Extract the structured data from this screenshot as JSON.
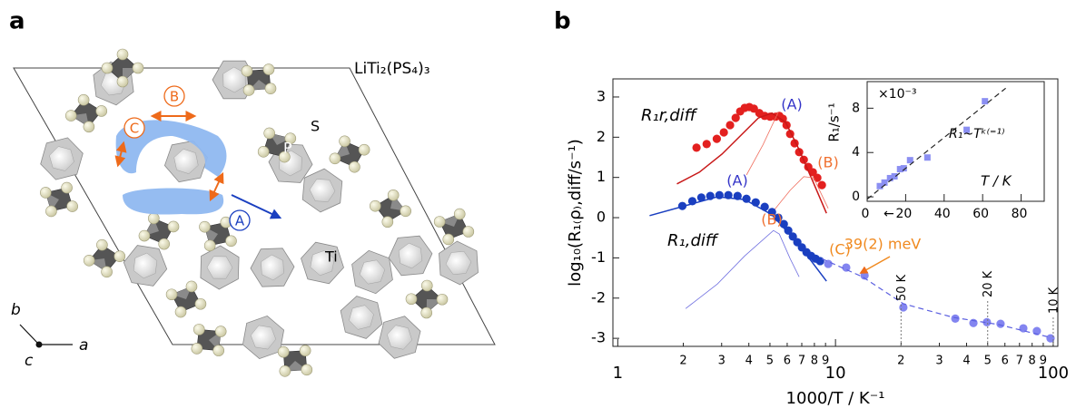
{
  "panel_a": {
    "label": "a",
    "compound": "LiTi₂(PS₄)₃",
    "atoms": [
      "S",
      "P",
      "Ti"
    ],
    "paths": [
      "A",
      "B",
      "C"
    ],
    "axes": [
      "a",
      "b",
      "c"
    ]
  },
  "panel_b": {
    "label": "b"
  },
  "chart_data": [
    {
      "type": "scatter",
      "xscale": "log",
      "x_label": "1000/T / K⁻¹",
      "y_label": "log₁₀(R₁₍ρ₎,diff/s⁻¹)",
      "xlim": [
        0.95,
        105
      ],
      "ylim": [
        -3.2,
        3.45
      ],
      "xticks": [
        1,
        2,
        3,
        4,
        5,
        6,
        7,
        8,
        9,
        10,
        {
          "value": 20,
          "label": "2"
        },
        {
          "value": 30,
          "label": "3"
        },
        {
          "value": 40,
          "label": "4"
        },
        {
          "value": 50,
          "label": "5"
        },
        {
          "value": 60,
          "label": "6"
        },
        {
          "value": 70,
          "label": "7"
        },
        {
          "value": 80,
          "label": "8"
        },
        {
          "value": 90,
          "label": "9"
        },
        100
      ],
      "yticks": [
        -3,
        -2,
        -1,
        0,
        1,
        2,
        3
      ],
      "series": [
        {
          "name": "R₁r,diff",
          "color": "#e3201f",
          "marker": "circle",
          "x": [
            2.3,
            2.56,
            2.85,
            3.07,
            3.28,
            3.48,
            3.65,
            3.83,
            4.02,
            4.22,
            4.47,
            4.73,
            5.01,
            5.31,
            5.52,
            5.73,
            5.96,
            6.19,
            6.49,
            6.81,
            7.15,
            7.5,
            7.87,
            8.25,
            8.66
          ],
          "values": [
            1.74,
            1.83,
            1.96,
            2.12,
            2.3,
            2.48,
            2.64,
            2.73,
            2.75,
            2.71,
            2.6,
            2.53,
            2.51,
            2.51,
            2.53,
            2.46,
            2.3,
            2.08,
            1.85,
            1.63,
            1.44,
            1.26,
            1.13,
            0.99,
            0.81
          ]
        },
        {
          "color": "#c81818",
          "line": true,
          "width": 1.5,
          "x": [
            1.87,
            2.37,
            3.01,
            3.65,
            4.43,
            5.11,
            5.9,
            6.81,
            7.87,
            9.09
          ],
          "values": [
            0.84,
            1.13,
            1.58,
            2.03,
            2.48,
            2.6,
            2.37,
            1.69,
            0.9,
            0.11
          ]
        },
        {
          "color": "#f07060",
          "line": true,
          "width": 0.8,
          "x": [
            3.9,
            4.64,
            5.46
          ],
          "values": [
            1.06,
            1.81,
            2.62
          ]
        },
        {
          "color": "#f07060",
          "line": true,
          "width": 0.8,
          "x": [
            5.21,
            6.19,
            7.15,
            7.94,
            8.66,
            9.26
          ],
          "values": [
            0.18,
            0.68,
            1.02,
            0.99,
            0.56,
            0.23
          ]
        },
        {
          "name": "R₁,diff",
          "color": "#1a3fc0",
          "marker": "circle",
          "x": [
            1.98,
            2.2,
            2.42,
            2.66,
            2.93,
            3.22,
            3.55,
            3.9,
            4.3,
            4.73,
            5.11,
            5.46,
            5.79,
            6.07,
            6.37,
            6.68,
            7.01,
            7.36,
            7.72,
            8.1,
            8.5
          ],
          "values": [
            0.29,
            0.41,
            0.5,
            0.54,
            0.56,
            0.56,
            0.54,
            0.47,
            0.38,
            0.27,
            0.14,
            0,
            -0.16,
            -0.32,
            -0.47,
            -0.61,
            -0.74,
            -0.86,
            -0.95,
            -1.02,
            -1.08
          ]
        },
        {
          "color": "#1a3fc0",
          "line": true,
          "width": 1.5,
          "x": [
            1.4,
            1.96,
            2.87,
            3.83,
            5.11,
            6.81,
            9.09
          ],
          "values": [
            0.05,
            0.27,
            0.52,
            0.45,
            0.07,
            -0.68,
            -1.58
          ]
        },
        {
          "color": "#7070e0",
          "line": true,
          "width": 0.8,
          "x": [
            2.05,
            2.87,
            3.83,
            5.19,
            5.52,
            6.19,
            6.81
          ],
          "values": [
            -2.26,
            -1.65,
            -0.95,
            -0.32,
            -0.41,
            -1.02,
            -1.47
          ]
        },
        {
          "color": "#8385f0",
          "marker": "circle",
          "x": [
            9.26,
            11.2,
            13.6,
            20.5,
            35.5,
            43.0,
            49.6,
            57.3,
            72.9,
            84.1,
            97.2
          ],
          "values": [
            -1.15,
            -1.24,
            -1.44,
            -2.23,
            -2.51,
            -2.62,
            -2.6,
            -2.64,
            -2.75,
            -2.82,
            -3.0
          ]
        },
        {
          "color": "#5b5fe0",
          "line": true,
          "dash": true,
          "width": 1.2,
          "x": [
            8.66,
            13.3,
            20.5,
            34.8,
            56.2,
            97.2
          ],
          "values": [
            -1.02,
            -1.47,
            -2.14,
            -2.48,
            -2.66,
            -2.98
          ]
        }
      ],
      "annotations": [
        "(A)",
        "(A)",
        "(B)",
        "(B)",
        "(C)",
        "39(2) meV"
      ],
      "temperature_markers": [
        {
          "label": "50 K",
          "x": 20
        },
        {
          "label": "20 K",
          "x": 50
        },
        {
          "label": "10 K",
          "x": 100
        }
      ]
    },
    {
      "type": "scatter",
      "x_label": "T / K",
      "y_label": "R₁/s⁻¹",
      "multiplier": "×10⁻³",
      "annotations": [
        "R₁~Tᵏ⁽⁼¹⁾"
      ],
      "axis_break": "←",
      "xlim": [
        0,
        92
      ],
      "ylim": [
        -0.4,
        10.4
      ],
      "xticks": [
        0,
        20,
        40,
        60,
        80
      ],
      "yticks": [
        0,
        4,
        8
      ],
      "series": [
        {
          "color": "#8b8ff2",
          "marker": "square",
          "x": [
            6.6,
            9.0,
            11.9,
            14.2,
            17.1,
            19.0,
            22.3,
            31.3,
            51.7,
            61.2
          ],
          "values": [
            0.97,
            1.29,
            1.69,
            1.85,
            2.5,
            2.58,
            3.31,
            3.55,
            6.05,
            8.63
          ]
        },
        {
          "color": "#222222",
          "line": true,
          "dash": true,
          "width": 1.2,
          "x": [
            0,
            72
          ],
          "values": [
            -0.2,
            9.8
          ]
        }
      ]
    }
  ]
}
